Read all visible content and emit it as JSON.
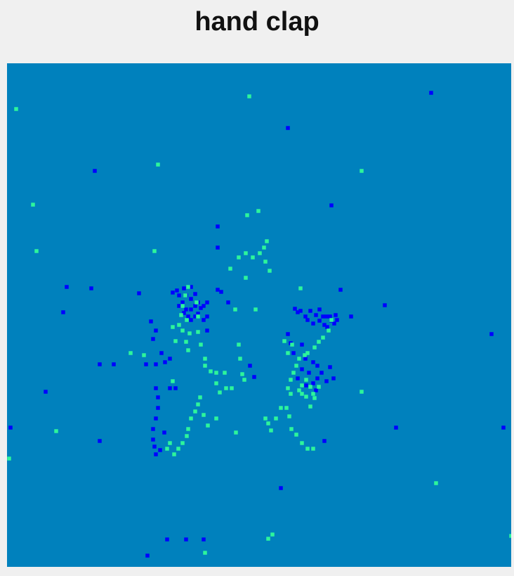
{
  "chart_data": {
    "type": "heatmap",
    "title": "hand clap",
    "xlabel": "",
    "ylabel": "",
    "grid": false,
    "legend": "none",
    "background_color": "#0081bd",
    "series": [
      {
        "color": "#0000ff",
        "points": [
          [
            604,
            42
          ],
          [
            400,
            92
          ],
          [
            125,
            153
          ],
          [
            462,
            202
          ],
          [
            300,
            232
          ],
          [
            300,
            262
          ],
          [
            85,
            318
          ],
          [
            120,
            320
          ],
          [
            188,
            327
          ],
          [
            236,
            326
          ],
          [
            300,
            322
          ],
          [
            475,
            322
          ],
          [
            538,
            344
          ],
          [
            80,
            354
          ],
          [
            242,
            323
          ],
          [
            245,
            330
          ],
          [
            245,
            345
          ],
          [
            252,
            320
          ],
          [
            250,
            340
          ],
          [
            252,
            355
          ],
          [
            255,
            330
          ],
          [
            255,
            350
          ],
          [
            258,
            360
          ],
          [
            262,
            318
          ],
          [
            262,
            335
          ],
          [
            262,
            350
          ],
          [
            262,
            365
          ],
          [
            268,
            328
          ],
          [
            268,
            345
          ],
          [
            268,
            360
          ],
          [
            272,
            340
          ],
          [
            272,
            356
          ],
          [
            276,
            348
          ],
          [
            280,
            345
          ],
          [
            280,
            365
          ],
          [
            285,
            340
          ],
          [
            285,
            360
          ],
          [
            285,
            380
          ],
          [
            205,
            367
          ],
          [
            208,
            392
          ],
          [
            212,
            380
          ],
          [
            220,
            412
          ],
          [
            225,
            425
          ],
          [
            132,
            428
          ],
          [
            152,
            428
          ],
          [
            198,
            428
          ],
          [
            212,
            428
          ],
          [
            232,
            420
          ],
          [
            305,
            325
          ],
          [
            315,
            340
          ],
          [
            490,
            360
          ],
          [
            410,
            349
          ],
          [
            414,
            354
          ],
          [
            418,
            352
          ],
          [
            425,
            360
          ],
          [
            428,
            365
          ],
          [
            432,
            352
          ],
          [
            436,
            370
          ],
          [
            440,
            358
          ],
          [
            445,
            350
          ],
          [
            445,
            366
          ],
          [
            450,
            360
          ],
          [
            452,
            372
          ],
          [
            455,
            360
          ],
          [
            456,
            375
          ],
          [
            460,
            360
          ],
          [
            462,
            366
          ],
          [
            466,
            370
          ],
          [
            468,
            358
          ],
          [
            470,
            365
          ],
          [
            400,
            385
          ],
          [
            404,
            398
          ],
          [
            408,
            412
          ],
          [
            420,
            400
          ],
          [
            425,
            420
          ],
          [
            430,
            440
          ],
          [
            436,
            425
          ],
          [
            436,
            455
          ],
          [
            442,
            430
          ],
          [
            442,
            448
          ],
          [
            448,
            440
          ],
          [
            455,
            452
          ],
          [
            460,
            432
          ],
          [
            465,
            448
          ],
          [
            420,
            435
          ],
          [
            414,
            448
          ],
          [
            426,
            458
          ],
          [
            440,
            465
          ],
          [
            346,
            430
          ],
          [
            352,
            446
          ],
          [
            212,
            462
          ],
          [
            215,
            475
          ],
          [
            215,
            490
          ],
          [
            212,
            505
          ],
          [
            208,
            520
          ],
          [
            208,
            535
          ],
          [
            210,
            545
          ],
          [
            212,
            556
          ],
          [
            218,
            550
          ],
          [
            224,
            525
          ],
          [
            232,
            462
          ],
          [
            240,
            462
          ],
          [
            55,
            467
          ],
          [
            554,
            518
          ],
          [
            690,
            385
          ],
          [
            707,
            518
          ],
          [
            5,
            518
          ],
          [
            390,
            604
          ],
          [
            132,
            537
          ],
          [
            452,
            537
          ],
          [
            200,
            700
          ],
          [
            255,
            677
          ],
          [
            280,
            677
          ],
          [
            228,
            677
          ]
        ]
      },
      {
        "color": "#2df59b",
        "points": [
          [
            345,
            47
          ],
          [
            13,
            65
          ],
          [
            215,
            144
          ],
          [
            505,
            153
          ],
          [
            37,
            201
          ],
          [
            358,
            210
          ],
          [
            342,
            216
          ],
          [
            42,
            267
          ],
          [
            210,
            267
          ],
          [
            370,
            253
          ],
          [
            366,
            262
          ],
          [
            360,
            270
          ],
          [
            340,
            270
          ],
          [
            350,
            276
          ],
          [
            330,
            276
          ],
          [
            368,
            282
          ],
          [
            318,
            292
          ],
          [
            340,
            305
          ],
          [
            374,
            295
          ],
          [
            418,
            320
          ],
          [
            354,
            350
          ],
          [
            325,
            350
          ],
          [
            258,
            318
          ],
          [
            254,
            330
          ],
          [
            250,
            345
          ],
          [
            248,
            358
          ],
          [
            245,
            372
          ],
          [
            250,
            380
          ],
          [
            255,
            396
          ],
          [
            258,
            408
          ],
          [
            260,
            384
          ],
          [
            256,
            365
          ],
          [
            270,
            340
          ],
          [
            272,
            360
          ],
          [
            272,
            382
          ],
          [
            276,
            400
          ],
          [
            282,
            420
          ],
          [
            236,
            375
          ],
          [
            240,
            395
          ],
          [
            176,
            412
          ],
          [
            195,
            415
          ],
          [
            282,
            430
          ],
          [
            290,
            438
          ],
          [
            298,
            440
          ],
          [
            310,
            440
          ],
          [
            330,
            400
          ],
          [
            332,
            420
          ],
          [
            335,
            442
          ],
          [
            338,
            450
          ],
          [
            312,
            462
          ],
          [
            298,
            455
          ],
          [
            320,
            462
          ],
          [
            303,
            468
          ],
          [
            462,
            365
          ],
          [
            458,
            380
          ],
          [
            450,
            390
          ],
          [
            444,
            396
          ],
          [
            438,
            404
          ],
          [
            428,
            412
          ],
          [
            424,
            415
          ],
          [
            416,
            420
          ],
          [
            412,
            430
          ],
          [
            408,
            440
          ],
          [
            404,
            450
          ],
          [
            400,
            462
          ],
          [
            404,
            470
          ],
          [
            416,
            465
          ],
          [
            420,
            458
          ],
          [
            426,
            474
          ],
          [
            432,
            460
          ],
          [
            436,
            470
          ],
          [
            432,
            488
          ],
          [
            438,
            476
          ],
          [
            444,
            460
          ],
          [
            505,
            467
          ],
          [
            395,
            395
          ],
          [
            400,
            412
          ],
          [
            406,
            400
          ],
          [
            262,
            505
          ],
          [
            258,
            520
          ],
          [
            256,
            530
          ],
          [
            250,
            540
          ],
          [
            244,
            548
          ],
          [
            238,
            556
          ],
          [
            228,
            548
          ],
          [
            232,
            540
          ],
          [
            268,
            495
          ],
          [
            272,
            485
          ],
          [
            275,
            475
          ],
          [
            280,
            500
          ],
          [
            286,
            515
          ],
          [
            298,
            505
          ],
          [
            236,
            452
          ],
          [
            368,
            505
          ],
          [
            372,
            512
          ],
          [
            376,
            522
          ],
          [
            383,
            505
          ],
          [
            390,
            490
          ],
          [
            398,
            490
          ],
          [
            402,
            502
          ],
          [
            405,
            520
          ],
          [
            412,
            528
          ],
          [
            420,
            540
          ],
          [
            428,
            548
          ],
          [
            436,
            548
          ],
          [
            420,
            470
          ],
          [
            426,
            450
          ],
          [
            326,
            525
          ],
          [
            70,
            523
          ],
          [
            3,
            562
          ],
          [
            611,
            597
          ],
          [
            718,
            672
          ],
          [
            378,
            670
          ],
          [
            372,
            676
          ],
          [
            282,
            696
          ]
        ]
      }
    ]
  }
}
